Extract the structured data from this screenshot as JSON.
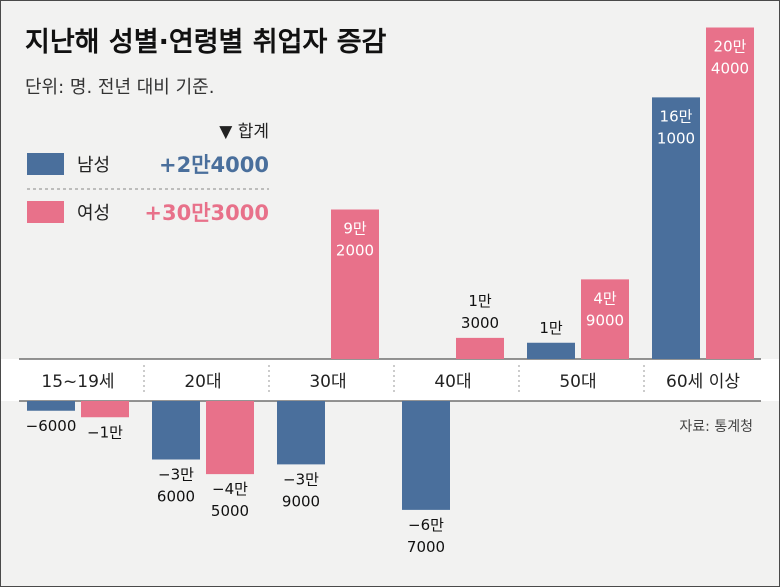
{
  "chart_data": {
    "type": "bar",
    "title": "지난해 성별·연령별 취업자 증감",
    "unit": "단위: 명. 전년 대비 기준.",
    "total_header": "▼ 합계",
    "source": "자료: 통계청",
    "categories": [
      "15~19세",
      "20대",
      "30대",
      "40대",
      "50대",
      "60세 이상"
    ],
    "series": [
      {
        "name": "남성",
        "total": "+2만4000",
        "color": "#4a6f9c",
        "values": [
          -6000,
          -36000,
          -39000,
          -67000,
          10000,
          161000
        ],
        "labels": [
          [
            "−6000"
          ],
          [
            "−3만",
            "6000"
          ],
          [
            "−3만",
            "9000"
          ],
          [
            "−6만",
            "7000"
          ],
          [
            "1만"
          ],
          [
            "16만",
            "1000"
          ]
        ]
      },
      {
        "name": "여성",
        "total": "+30만3000",
        "color": "#e8718a",
        "values": [
          -10000,
          -45000,
          92000,
          13000,
          49000,
          204000
        ],
        "labels": [
          [
            "−1만"
          ],
          [
            "−4만",
            "5000"
          ],
          [
            "9만",
            "2000"
          ],
          [
            "1만",
            "3000"
          ],
          [
            "4만",
            "9000"
          ],
          [
            "20만",
            "4000"
          ]
        ]
      }
    ],
    "yrange": [
      -80000,
      210000
    ]
  }
}
